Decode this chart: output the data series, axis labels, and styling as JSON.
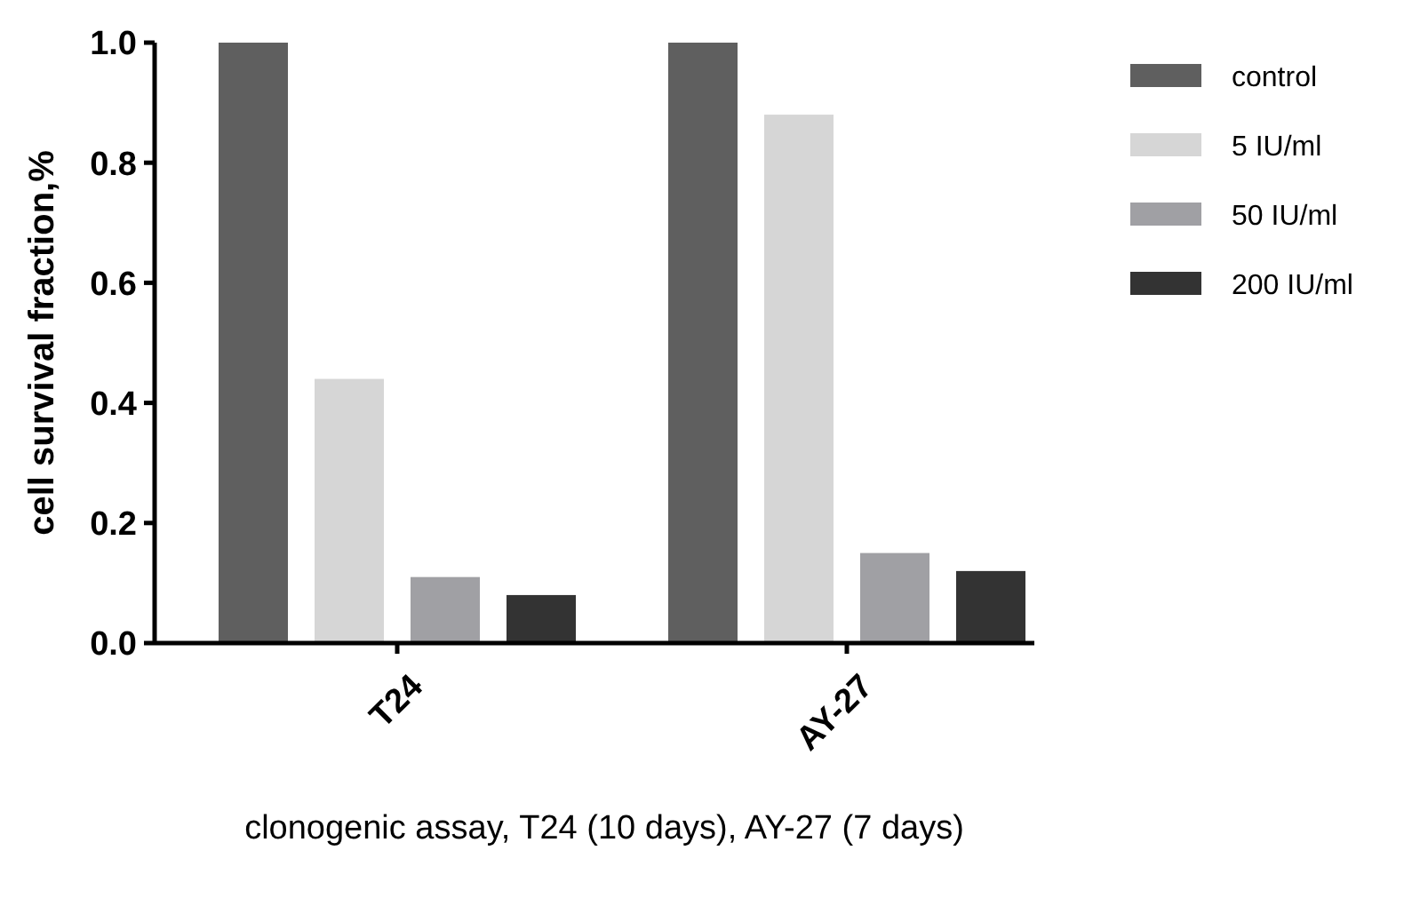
{
  "chart_data": {
    "type": "bar",
    "xlabel": "clonogenic assay, T24 (10 days), AY-27 (7 days)",
    "ylabel": "cell survival fraction,%",
    "categories": [
      "T24",
      "AY-27"
    ],
    "series": [
      {
        "name": "control",
        "color": "#5f5f5f",
        "values": [
          1.0,
          1.0
        ]
      },
      {
        "name": "5 IU/ml",
        "color": "#d6d6d6",
        "values": [
          0.44,
          0.88
        ]
      },
      {
        "name": "50 IU/ml",
        "color": "#a0a0a4",
        "values": [
          0.11,
          0.15
        ]
      },
      {
        "name": "200 IU/ml",
        "color": "#333333",
        "values": [
          0.08,
          0.12
        ]
      }
    ],
    "ylim": [
      0,
      1
    ],
    "yticks": [
      {
        "value": 0,
        "label": "0.0"
      },
      0.2,
      0.4,
      0.6,
      0.8,
      {
        "value": 1,
        "label": "1.0"
      }
    ],
    "grid": false,
    "legend": "right"
  }
}
